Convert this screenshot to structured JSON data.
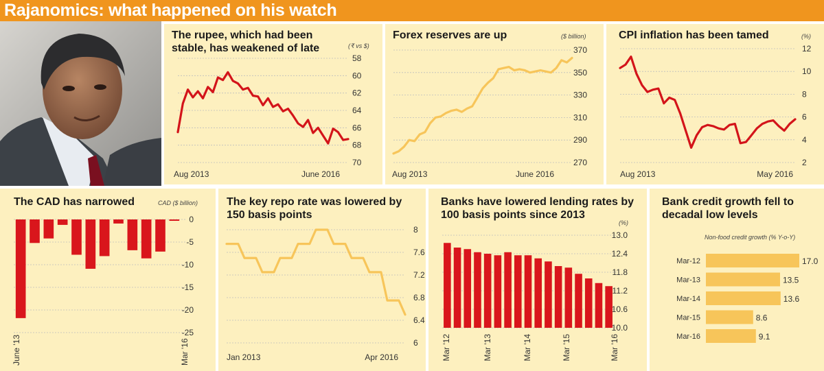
{
  "banner": {
    "title": "Rajanomics: what happened on his watch"
  },
  "photo": {
    "alt": "Raghuram Rajan"
  },
  "colors": {
    "banner": "#f0951e",
    "panel_bg": "#fdf0bf",
    "red": "#d3141a",
    "yellow": "#f7c55a",
    "bar_red": "#d9161c"
  },
  "chart_data": [
    {
      "id": "rupee",
      "type": "line",
      "title": "The rupee, which had been stable, has weakened of late",
      "ylabel": "(₹ vs $)",
      "yinverted": true,
      "ylim": [
        58,
        70
      ],
      "yticks": [
        58,
        60,
        62,
        64,
        66,
        68,
        70
      ],
      "xlabels": [
        "Aug 2013",
        "June 2016"
      ],
      "color": "#d3141a",
      "values": [
        66.5,
        63.2,
        61.6,
        62.5,
        61.8,
        62.6,
        61.3,
        61.9,
        60.2,
        60.5,
        59.6,
        60.6,
        60.9,
        61.6,
        61.4,
        62.3,
        62.4,
        63.4,
        62.6,
        63.6,
        63.3,
        64.1,
        63.8,
        64.6,
        65.5,
        65.9,
        65.1,
        66.6,
        66.0,
        66.9,
        67.8,
        66.1,
        66.5,
        67.4,
        67.3
      ]
    },
    {
      "id": "forex",
      "type": "line",
      "title": "Forex reserves are up",
      "ylabel": "($ billion)",
      "ylim": [
        270,
        370
      ],
      "yticks": [
        270,
        290,
        310,
        330,
        350,
        370
      ],
      "xlabels": [
        "Aug 2013",
        "June 2016"
      ],
      "color": "#f7c55a",
      "values": [
        278,
        280,
        284,
        290,
        289,
        295,
        297,
        305,
        310,
        311,
        314,
        316,
        317,
        315,
        318,
        320,
        328,
        336,
        341,
        345,
        353,
        354,
        355,
        352,
        353,
        352,
        350,
        351,
        352,
        351,
        350,
        354,
        361,
        359,
        363
      ]
    },
    {
      "id": "cpi",
      "type": "line",
      "title": "CPI inflation has been tamed",
      "ylabel": "(%)",
      "ylim": [
        2,
        12
      ],
      "yticks": [
        2,
        4,
        6,
        8,
        10,
        12
      ],
      "xlabels": [
        "Aug 2013",
        "May 2016"
      ],
      "color": "#d3141a",
      "values": [
        10.3,
        10.6,
        11.3,
        9.8,
        8.8,
        8.2,
        8.4,
        8.5,
        7.2,
        7.7,
        7.5,
        6.3,
        4.8,
        3.3,
        4.4,
        5.1,
        5.3,
        5.2,
        5.0,
        4.9,
        5.3,
        5.4,
        3.7,
        3.8,
        4.4,
        5.0,
        5.4,
        5.6,
        5.7,
        5.2,
        4.8,
        5.4,
        5.8
      ]
    },
    {
      "id": "cad",
      "type": "bar",
      "title": "The CAD has narrowed",
      "ylabel": "CAD ($ billion)",
      "ylim": [
        -25,
        0
      ],
      "yticks": [
        0,
        -5,
        -10,
        -15,
        -20,
        -25
      ],
      "xlabels": [
        "June '13",
        "Mar '16"
      ],
      "color": "#d9161c",
      "values": [
        -21.8,
        -5.2,
        -4.2,
        -1.2,
        -7.8,
        -10.9,
        -8.1,
        -0.9,
        -6.8,
        -8.6,
        -7.1,
        -0.3
      ]
    },
    {
      "id": "repo",
      "type": "line",
      "title": "The key repo rate was lowered by 150 basis points",
      "ylim": [
        6.0,
        8.0
      ],
      "yticks": [
        8.0,
        7.6,
        7.2,
        6.8,
        6.4,
        6.0
      ],
      "xlabels": [
        "Jan 2013",
        "Apr 2016"
      ],
      "color": "#f7c55a",
      "step": true,
      "values": [
        7.75,
        7.5,
        7.25,
        7.5,
        7.75,
        8.0,
        7.75,
        7.5,
        7.25,
        6.75,
        6.5
      ]
    },
    {
      "id": "lending",
      "type": "bar",
      "title": "Banks have lowered lending rates by 100 basis points since 2013",
      "ylabel": "(%)",
      "ylim": [
        10.0,
        13.0
      ],
      "yticks": [
        13.0,
        12.4,
        11.8,
        11.2,
        10.6,
        10.0
      ],
      "xlabels": [
        "Mar '12",
        "Mar '13",
        "Mar '14",
        "Mar '15",
        "Mar '16"
      ],
      "color": "#d9161c",
      "values": [
        12.75,
        12.6,
        12.55,
        12.45,
        12.4,
        12.35,
        12.45,
        12.35,
        12.35,
        12.25,
        12.15,
        12.0,
        11.95,
        11.75,
        11.6,
        11.45,
        11.35
      ]
    },
    {
      "id": "credit",
      "type": "bar",
      "orientation": "horizontal",
      "title": "Bank credit growth fell to decadal low levels",
      "subtitle": "Non-food credit growth (% Y-o-Y)",
      "categories": [
        "Mar-12",
        "Mar-13",
        "Mar-14",
        "Mar-15",
        "Mar-16"
      ],
      "values": [
        17.0,
        13.5,
        13.6,
        8.6,
        9.1
      ],
      "labels": [
        "17.0",
        "13.5",
        "13.6",
        "8.6",
        "9.1"
      ],
      "xlim": [
        0,
        18
      ],
      "color": "#f7c55a"
    }
  ]
}
